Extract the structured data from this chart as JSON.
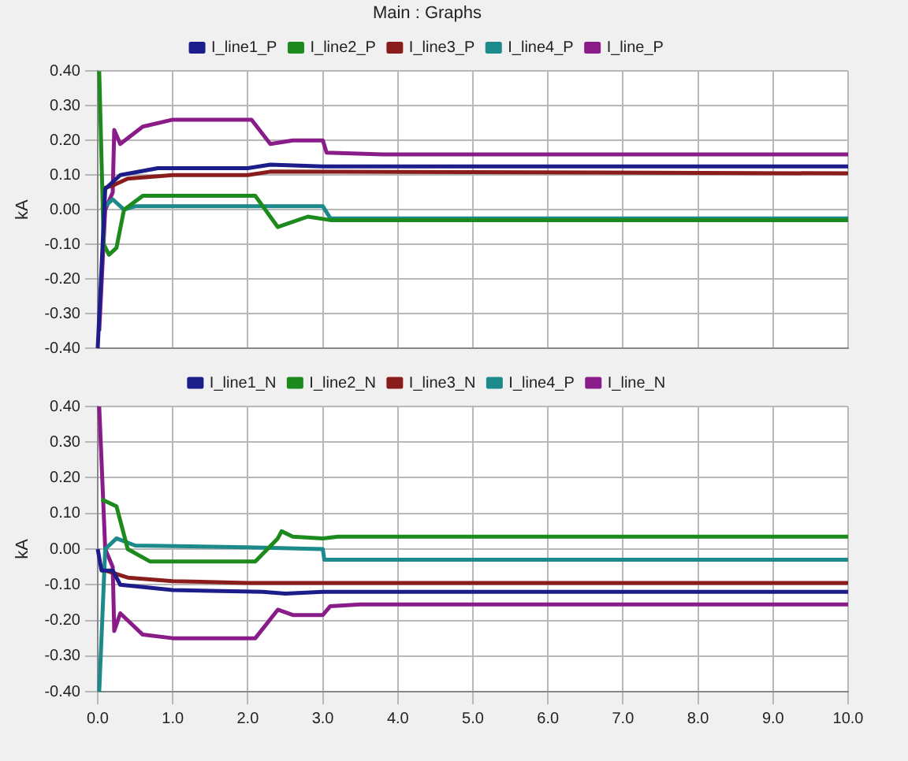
{
  "chart_data": [
    {
      "type": "line",
      "title": "Main : Graphs",
      "ylabel": "kA",
      "xlim": [
        0,
        10
      ],
      "xticks": [
        {
          "value": 0,
          "label": null
        },
        {
          "value": 1,
          "label": null
        },
        {
          "value": 2,
          "label": null
        },
        {
          "value": 3,
          "label": null
        },
        {
          "value": 4,
          "label": null
        },
        {
          "value": 5,
          "label": null
        },
        {
          "value": 6,
          "label": null
        },
        {
          "value": 7,
          "label": null
        },
        {
          "value": 8,
          "label": null
        },
        {
          "value": 9,
          "label": null
        },
        {
          "value": 10,
          "label": null
        }
      ],
      "ylim": [
        -0.4,
        0.4
      ],
      "yticks": [
        {
          "value": -0.4,
          "label": "-0.40"
        },
        {
          "value": -0.3,
          "label": "-0.30"
        },
        {
          "value": -0.2,
          "label": "-0.20"
        },
        {
          "value": -0.1,
          "label": "-0.10"
        },
        {
          "value": 0,
          "label": "0.00"
        },
        {
          "value": 0.1,
          "label": "0.10"
        },
        {
          "value": 0.2,
          "label": "0.20"
        },
        {
          "value": 0.3,
          "label": "0.30"
        },
        {
          "value": 0.4,
          "label": "0.40"
        }
      ],
      "grid": true,
      "legend": "top",
      "tick_labels": "y",
      "series": [
        {
          "name": "I_line1_P",
          "color": "#1c1c8a",
          "x": [
            0,
            0.1,
            0.3,
            0.8,
            2.0,
            2.3,
            3.0,
            10
          ],
          "values": [
            -0.4,
            0.06,
            0.1,
            0.12,
            0.12,
            0.13,
            0.125,
            0.125
          ]
        },
        {
          "name": "I_line2_P",
          "color": "#1c8a1c",
          "x": [
            0.02,
            0.08,
            0.15,
            0.25,
            0.35,
            0.6,
            2.1,
            2.4,
            2.8,
            3.1,
            10
          ],
          "values": [
            0.4,
            -0.1,
            -0.13,
            -0.11,
            0.0,
            0.04,
            0.04,
            -0.05,
            -0.02,
            -0.03,
            -0.03
          ]
        },
        {
          "name": "I_line3_P",
          "color": "#8a1c1c",
          "x": [
            0.05,
            0.2,
            0.4,
            1.0,
            2.0,
            2.3,
            10
          ],
          "values": [
            0.06,
            0.07,
            0.09,
            0.1,
            0.1,
            0.11,
            0.105
          ]
        },
        {
          "name": "I_line4_P",
          "color": "#1c8a8a",
          "x": [
            0.05,
            0.2,
            0.35,
            0.5,
            3.0,
            3.1,
            10
          ],
          "values": [
            0.0,
            0.03,
            0.0,
            0.01,
            0.01,
            -0.025,
            -0.025
          ]
        },
        {
          "name": "I_line_P",
          "color": "#8a1c8a",
          "x": [
            0.02,
            0.1,
            0.2,
            0.22,
            0.3,
            0.6,
            1.0,
            2.05,
            2.3,
            2.6,
            3.0,
            3.05,
            3.8,
            10
          ],
          "values": [
            -0.35,
            0.0,
            0.05,
            0.23,
            0.19,
            0.24,
            0.26,
            0.26,
            0.19,
            0.2,
            0.2,
            0.165,
            0.16,
            0.16
          ]
        }
      ]
    },
    {
      "type": "line",
      "ylabel": "kA",
      "xlim": [
        0,
        10
      ],
      "xticks": [
        {
          "value": 0,
          "label": "0.0"
        },
        {
          "value": 1,
          "label": "1.0"
        },
        {
          "value": 2,
          "label": "2.0"
        },
        {
          "value": 3,
          "label": "3.0"
        },
        {
          "value": 4,
          "label": "4.0"
        },
        {
          "value": 5,
          "label": "5.0"
        },
        {
          "value": 6,
          "label": "6.0"
        },
        {
          "value": 7,
          "label": "7.0"
        },
        {
          "value": 8,
          "label": "8.0"
        },
        {
          "value": 9,
          "label": "9.0"
        },
        {
          "value": 10,
          "label": "10.0"
        }
      ],
      "ylim": [
        -0.4,
        0.4
      ],
      "yticks": [
        {
          "value": -0.4,
          "label": "-0.40"
        },
        {
          "value": -0.3,
          "label": "-0.30"
        },
        {
          "value": -0.2,
          "label": "-0.20"
        },
        {
          "value": -0.1,
          "label": "-0.10"
        },
        {
          "value": 0,
          "label": "0.00"
        },
        {
          "value": 0.1,
          "label": "0.10"
        },
        {
          "value": 0.2,
          "label": "0.20"
        },
        {
          "value": 0.3,
          "label": "0.30"
        },
        {
          "value": 0.4,
          "label": "0.40"
        }
      ],
      "grid": true,
      "legend": "top",
      "series": [
        {
          "name": "I_line1_N",
          "color": "#1c1c8a",
          "x": [
            0,
            0.05,
            0.2,
            0.3,
            1.0,
            2.2,
            2.5,
            3.0,
            10
          ],
          "values": [
            0.0,
            -0.06,
            -0.06,
            -0.1,
            -0.115,
            -0.12,
            -0.125,
            -0.12,
            -0.12
          ]
        },
        {
          "name": "I_line2_N",
          "color": "#1c8a1c",
          "x": [
            0.05,
            0.25,
            0.4,
            0.7,
            2.1,
            2.4,
            2.45,
            2.6,
            3.0,
            3.2,
            10
          ],
          "values": [
            0.14,
            0.12,
            0.0,
            -0.035,
            -0.035,
            0.03,
            0.05,
            0.035,
            0.03,
            0.035,
            0.035
          ]
        },
        {
          "name": "I_line3_N",
          "color": "#8a1c1c",
          "x": [
            0.1,
            0.4,
            1.0,
            2.0,
            10
          ],
          "values": [
            -0.06,
            -0.08,
            -0.09,
            -0.095,
            -0.095
          ]
        },
        {
          "name": "I_line4_P",
          "color": "#1c8a8a",
          "x": [
            0.02,
            0.1,
            0.25,
            0.5,
            2.0,
            3.0,
            3.02,
            10
          ],
          "values": [
            -0.4,
            0.0,
            0.03,
            0.01,
            0.005,
            0.0,
            -0.03,
            -0.03
          ]
        },
        {
          "name": "I_line_N",
          "color": "#8a1c8a",
          "x": [
            0.02,
            0.1,
            0.2,
            0.22,
            0.3,
            0.6,
            1.0,
            2.1,
            2.4,
            2.6,
            3.0,
            3.1,
            3.5,
            10
          ],
          "values": [
            0.4,
            0.0,
            -0.05,
            -0.23,
            -0.18,
            -0.24,
            -0.25,
            -0.25,
            -0.17,
            -0.185,
            -0.185,
            -0.16,
            -0.155,
            -0.155
          ]
        }
      ]
    }
  ]
}
